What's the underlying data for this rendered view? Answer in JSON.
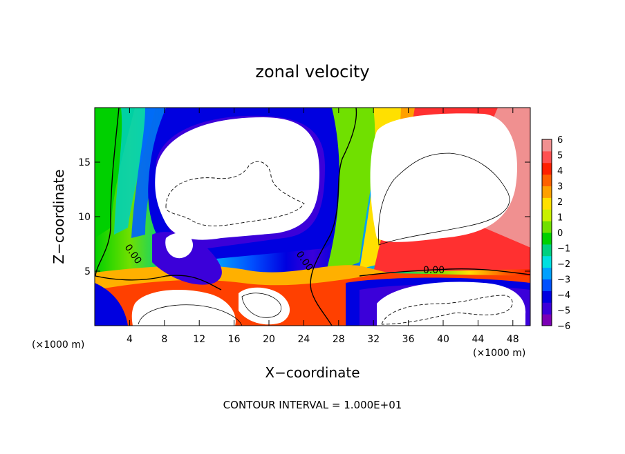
{
  "chart_data": {
    "type": "heatmap",
    "title": "zonal velocity",
    "xlabel": "X−coordinate",
    "ylabel": "Z−coordinate",
    "x_unit": "(×1000 m)",
    "y_unit": "(×1000 m)",
    "xlim": [
      0,
      50
    ],
    "ylim": [
      0,
      20
    ],
    "x_ticks": [
      "4",
      "8",
      "12",
      "16",
      "20",
      "24",
      "28",
      "32",
      "36",
      "40",
      "44",
      "48"
    ],
    "y_ticks": [
      "5",
      "10",
      "15"
    ],
    "x_tick_values": [
      4,
      8,
      12,
      16,
      20,
      24,
      28,
      32,
      36,
      40,
      44,
      48
    ],
    "y_tick_values": [
      5,
      10,
      15
    ],
    "colorbar": {
      "labels": [
        "6",
        "5",
        "4",
        "3",
        "2",
        "1",
        "0",
        "−1",
        "−2",
        "−3",
        "−4",
        "−5",
        "−6"
      ],
      "min": -6,
      "max": 6,
      "colors": [
        "#7b00b5",
        "#3b00d9",
        "#0000e0",
        "#0050ff",
        "#00a0ff",
        "#00e0e0",
        "#00d080",
        "#00d000",
        "#70e000",
        "#c8f000",
        "#ffe000",
        "#ffa000",
        "#ff6000",
        "#ff2000",
        "#ff5050",
        "#f09090"
      ]
    },
    "contour_labels": [
      "0.00",
      "0.00",
      "0.00"
    ],
    "footer": "CONTOUR INTERVAL = 1.000E+01"
  }
}
